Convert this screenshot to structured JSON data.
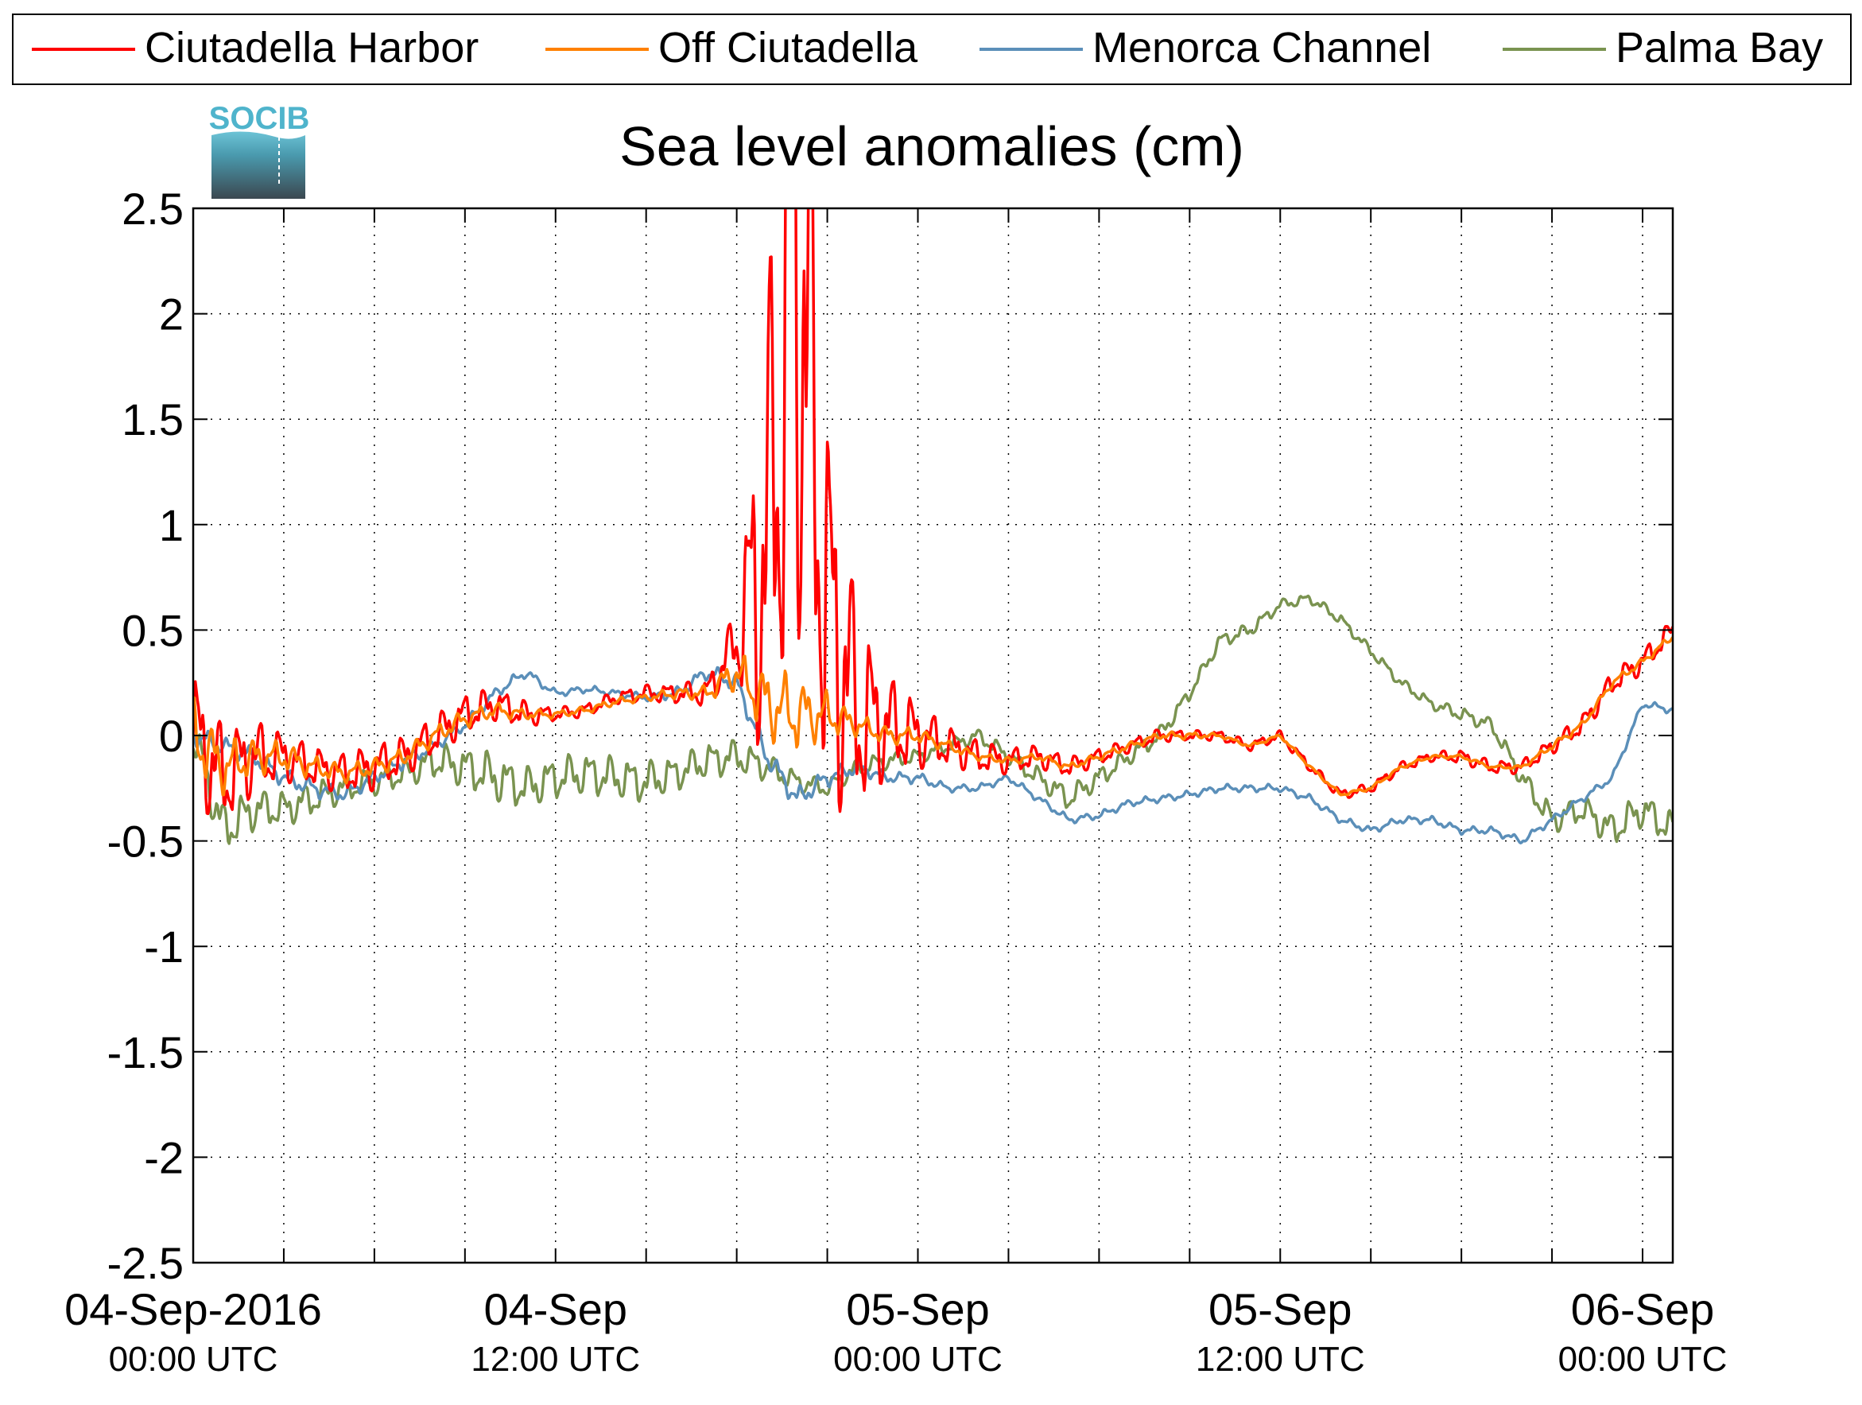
{
  "chart_data": {
    "type": "line",
    "title": "Sea level anomalies (cm)",
    "logo_text": "SOCIB",
    "ylim": [
      -2.5,
      2.5
    ],
    "yticks": [
      -2.5,
      -2,
      -1.5,
      -1,
      -0.5,
      0,
      0.5,
      1,
      1.5,
      2,
      2.5
    ],
    "ytick_labels": [
      "-2.5",
      "-2",
      "-1.5",
      "-1",
      "-0.5",
      "0",
      "0.5",
      "1",
      "1.5",
      "2",
      "2.5"
    ],
    "xlim": [
      "2016-09-04T00:00Z",
      "2016-09-06T01:00Z"
    ],
    "xticks": [
      {
        "time": "2016-09-04T00:00Z",
        "label1": "04-Sep-2016",
        "label2": "00:00 UTC"
      },
      {
        "time": "2016-09-04T12:00Z",
        "label1": "04-Sep",
        "label2": "12:00 UTC"
      },
      {
        "time": "2016-09-05T00:00Z",
        "label1": "05-Sep",
        "label2": "00:00 UTC"
      },
      {
        "time": "2016-09-05T12:00Z",
        "label1": "05-Sep",
        "label2": "12:00 UTC"
      },
      {
        "time": "2016-09-06T00:00Z",
        "label1": "06-Sep",
        "label2": "00:00 UTC"
      }
    ],
    "grid": true,
    "legend_position": "top",
    "series": [
      {
        "name": "Ciutadella Harbor",
        "color": "#ff0000",
        "x": [
          "2016-09-04T00:00Z",
          "2016-09-04T01:00Z",
          "2016-09-04T02:00Z",
          "2016-09-04T03:00Z",
          "2016-09-04T04:00Z",
          "2016-09-04T05:00Z",
          "2016-09-04T06:00Z",
          "2016-09-04T07:00Z",
          "2016-09-04T08:00Z",
          "2016-09-04T09:00Z",
          "2016-09-04T10:00Z",
          "2016-09-04T11:00Z",
          "2016-09-04T12:00Z",
          "2016-09-04T13:00Z",
          "2016-09-04T14:00Z",
          "2016-09-04T15:00Z",
          "2016-09-04T16:00Z",
          "2016-09-04T17:00Z",
          "2016-09-04T18:00Z",
          "2016-09-04T19:00Z",
          "2016-09-04T20:00Z",
          "2016-09-04T21:00Z",
          "2016-09-04T22:00Z",
          "2016-09-04T23:00Z",
          "2016-09-05T00:00Z",
          "2016-09-05T01:00Z",
          "2016-09-05T02:00Z",
          "2016-09-05T03:00Z",
          "2016-09-05T04:00Z",
          "2016-09-05T05:00Z",
          "2016-09-05T06:00Z",
          "2016-09-05T07:00Z",
          "2016-09-05T08:00Z",
          "2016-09-05T09:00Z",
          "2016-09-05T10:00Z",
          "2016-09-05T11:00Z",
          "2016-09-05T12:00Z",
          "2016-09-05T13:00Z",
          "2016-09-05T14:00Z",
          "2016-09-05T15:00Z",
          "2016-09-05T16:00Z",
          "2016-09-05T17:00Z",
          "2016-09-05T18:00Z",
          "2016-09-05T19:00Z",
          "2016-09-05T20:00Z",
          "2016-09-05T21:00Z",
          "2016-09-05T22:00Z",
          "2016-09-05T23:00Z",
          "2016-09-06T00:00Z",
          "2016-09-06T01:00Z"
        ],
        "values": [
          0.0,
          -0.2,
          -0.1,
          -0.1,
          -0.15,
          -0.18,
          -0.15,
          -0.1,
          0.0,
          0.1,
          0.15,
          0.1,
          0.1,
          0.12,
          0.18,
          0.2,
          0.2,
          0.2,
          0.45,
          0.9,
          2.4,
          0.6,
          0.1,
          0.05,
          0.0,
          -0.05,
          -0.1,
          -0.12,
          -0.1,
          -0.15,
          -0.1,
          -0.05,
          0.0,
          0.0,
          0.0,
          -0.05,
          0.0,
          -0.15,
          -0.28,
          -0.25,
          -0.15,
          -0.1,
          -0.1,
          -0.15,
          -0.15,
          -0.05,
          0.05,
          0.25,
          0.35,
          0.5
        ],
        "amplitude": [
          0.4,
          0.3,
          0.22,
          0.15,
          0.12,
          0.12,
          0.14,
          0.12,
          0.12,
          0.12,
          0.1,
          0.08,
          0.04,
          0.04,
          0.04,
          0.05,
          0.06,
          0.08,
          0.2,
          1.4,
          2.4,
          1.2,
          0.6,
          0.3,
          0.2,
          0.12,
          0.1,
          0.08,
          0.07,
          0.06,
          0.05,
          0.04,
          0.04,
          0.03,
          0.03,
          0.03,
          0.03,
          0.03,
          0.03,
          0.03,
          0.03,
          0.03,
          0.04,
          0.04,
          0.04,
          0.05,
          0.06,
          0.07,
          0.07,
          0.07
        ]
      },
      {
        "name": "Off Ciutadella",
        "color": "#ff8000",
        "x": [
          "2016-09-04T00:00Z",
          "2016-09-04T01:00Z",
          "2016-09-04T02:00Z",
          "2016-09-04T03:00Z",
          "2016-09-04T04:00Z",
          "2016-09-04T05:00Z",
          "2016-09-04T06:00Z",
          "2016-09-04T07:00Z",
          "2016-09-04T08:00Z",
          "2016-09-04T09:00Z",
          "2016-09-04T10:00Z",
          "2016-09-04T11:00Z",
          "2016-09-04T12:00Z",
          "2016-09-04T13:00Z",
          "2016-09-04T14:00Z",
          "2016-09-04T15:00Z",
          "2016-09-04T16:00Z",
          "2016-09-04T17:00Z",
          "2016-09-04T18:00Z",
          "2016-09-04T19:00Z",
          "2016-09-04T20:00Z",
          "2016-09-04T21:00Z",
          "2016-09-04T22:00Z",
          "2016-09-04T23:00Z",
          "2016-09-05T00:00Z",
          "2016-09-05T01:00Z",
          "2016-09-05T02:00Z",
          "2016-09-05T03:00Z",
          "2016-09-05T04:00Z",
          "2016-09-05T05:00Z",
          "2016-09-05T06:00Z",
          "2016-09-05T07:00Z",
          "2016-09-05T08:00Z",
          "2016-09-05T09:00Z",
          "2016-09-05T10:00Z",
          "2016-09-05T11:00Z",
          "2016-09-05T12:00Z",
          "2016-09-05T13:00Z",
          "2016-09-05T14:00Z",
          "2016-09-05T15:00Z",
          "2016-09-05T16:00Z",
          "2016-09-05T17:00Z",
          "2016-09-05T18:00Z",
          "2016-09-05T19:00Z",
          "2016-09-05T20:00Z",
          "2016-09-05T21:00Z",
          "2016-09-05T22:00Z",
          "2016-09-05T23:00Z",
          "2016-09-06T00:00Z",
          "2016-09-06T01:00Z"
        ],
        "values": [
          0.0,
          -0.15,
          -0.1,
          -0.1,
          -0.15,
          -0.18,
          -0.15,
          -0.1,
          0.0,
          0.08,
          0.12,
          0.1,
          0.1,
          0.12,
          0.16,
          0.18,
          0.2,
          0.2,
          0.3,
          0.15,
          0.1,
          0.1,
          0.05,
          0.0,
          0.0,
          -0.05,
          -0.1,
          -0.12,
          -0.1,
          -0.15,
          -0.1,
          -0.05,
          0.0,
          0.0,
          0.0,
          -0.05,
          0.0,
          -0.15,
          -0.28,
          -0.25,
          -0.15,
          -0.1,
          -0.1,
          -0.15,
          -0.15,
          -0.05,
          0.05,
          0.25,
          0.35,
          0.47
        ],
        "amplitude": [
          0.2,
          0.15,
          0.1,
          0.08,
          0.06,
          0.05,
          0.05,
          0.05,
          0.05,
          0.05,
          0.04,
          0.03,
          0.02,
          0.02,
          0.02,
          0.02,
          0.03,
          0.04,
          0.1,
          0.2,
          0.2,
          0.12,
          0.06,
          0.05,
          0.04,
          0.03,
          0.02,
          0.02,
          0.02,
          0.02,
          0.02,
          0.02,
          0.02,
          0.02,
          0.01,
          0.01,
          0.01,
          0.01,
          0.01,
          0.01,
          0.01,
          0.01,
          0.01,
          0.01,
          0.01,
          0.02,
          0.02,
          0.02,
          0.02,
          0.02
        ]
      },
      {
        "name": "Menorca Channel",
        "color": "#5b8fb9",
        "x": [
          "2016-09-04T00:00Z",
          "2016-09-04T01:00Z",
          "2016-09-04T02:00Z",
          "2016-09-04T03:00Z",
          "2016-09-04T04:00Z",
          "2016-09-04T05:00Z",
          "2016-09-04T06:00Z",
          "2016-09-04T07:00Z",
          "2016-09-04T08:00Z",
          "2016-09-04T09:00Z",
          "2016-09-04T10:00Z",
          "2016-09-04T11:00Z",
          "2016-09-04T12:00Z",
          "2016-09-04T13:00Z",
          "2016-09-04T14:00Z",
          "2016-09-04T15:00Z",
          "2016-09-04T16:00Z",
          "2016-09-04T17:00Z",
          "2016-09-04T18:00Z",
          "2016-09-04T19:00Z",
          "2016-09-04T20:00Z",
          "2016-09-04T21:00Z",
          "2016-09-04T22:00Z",
          "2016-09-04T23:00Z",
          "2016-09-05T00:00Z",
          "2016-09-05T01:00Z",
          "2016-09-05T02:00Z",
          "2016-09-05T03:00Z",
          "2016-09-05T04:00Z",
          "2016-09-05T05:00Z",
          "2016-09-05T06:00Z",
          "2016-09-05T07:00Z",
          "2016-09-05T08:00Z",
          "2016-09-05T09:00Z",
          "2016-09-05T10:00Z",
          "2016-09-05T11:00Z",
          "2016-09-05T12:00Z",
          "2016-09-05T13:00Z",
          "2016-09-05T14:00Z",
          "2016-09-05T15:00Z",
          "2016-09-05T16:00Z",
          "2016-09-05T17:00Z",
          "2016-09-05T18:00Z",
          "2016-09-05T19:00Z",
          "2016-09-05T20:00Z",
          "2016-09-05T21:00Z",
          "2016-09-05T22:00Z",
          "2016-09-05T23:00Z",
          "2016-09-06T00:00Z",
          "2016-09-06T01:00Z"
        ],
        "values": [
          0.0,
          -0.05,
          -0.1,
          -0.2,
          -0.25,
          -0.28,
          -0.2,
          -0.12,
          -0.05,
          0.05,
          0.2,
          0.3,
          0.2,
          0.22,
          0.2,
          0.18,
          0.2,
          0.3,
          0.25,
          -0.1,
          -0.3,
          -0.2,
          -0.15,
          -0.2,
          -0.2,
          -0.25,
          -0.25,
          -0.2,
          -0.3,
          -0.4,
          -0.38,
          -0.32,
          -0.3,
          -0.28,
          -0.25,
          -0.25,
          -0.25,
          -0.3,
          -0.4,
          -0.45,
          -0.4,
          -0.4,
          -0.45,
          -0.45,
          -0.5,
          -0.4,
          -0.3,
          -0.2,
          0.15,
          0.12
        ],
        "amplitude": [
          0.05,
          0.05,
          0.05,
          0.05,
          0.05,
          0.04,
          0.04,
          0.04,
          0.03,
          0.03,
          0.03,
          0.03,
          0.02,
          0.02,
          0.02,
          0.02,
          0.03,
          0.04,
          0.05,
          0.06,
          0.06,
          0.05,
          0.04,
          0.03,
          0.03,
          0.02,
          0.02,
          0.02,
          0.02,
          0.02,
          0.02,
          0.02,
          0.02,
          0.02,
          0.02,
          0.02,
          0.02,
          0.02,
          0.02,
          0.02,
          0.02,
          0.02,
          0.02,
          0.02,
          0.02,
          0.02,
          0.02,
          0.02,
          0.02,
          0.02
        ]
      },
      {
        "name": "Palma Bay",
        "color": "#7a9350",
        "x": [
          "2016-09-04T00:00Z",
          "2016-09-04T01:00Z",
          "2016-09-04T02:00Z",
          "2016-09-04T03:00Z",
          "2016-09-04T04:00Z",
          "2016-09-04T05:00Z",
          "2016-09-04T06:00Z",
          "2016-09-04T07:00Z",
          "2016-09-04T08:00Z",
          "2016-09-04T09:00Z",
          "2016-09-04T10:00Z",
          "2016-09-04T11:00Z",
          "2016-09-04T12:00Z",
          "2016-09-04T13:00Z",
          "2016-09-04T14:00Z",
          "2016-09-04T15:00Z",
          "2016-09-04T16:00Z",
          "2016-09-04T17:00Z",
          "2016-09-04T18:00Z",
          "2016-09-04T19:00Z",
          "2016-09-04T20:00Z",
          "2016-09-04T21:00Z",
          "2016-09-04T22:00Z",
          "2016-09-04T23:00Z",
          "2016-09-05T00:00Z",
          "2016-09-05T01:00Z",
          "2016-09-05T02:00Z",
          "2016-09-05T03:00Z",
          "2016-09-05T04:00Z",
          "2016-09-05T05:00Z",
          "2016-09-05T06:00Z",
          "2016-09-05T07:00Z",
          "2016-09-05T08:00Z",
          "2016-09-05T09:00Z",
          "2016-09-05T10:00Z",
          "2016-09-05T11:00Z",
          "2016-09-05T12:00Z",
          "2016-09-05T13:00Z",
          "2016-09-05T14:00Z",
          "2016-09-05T15:00Z",
          "2016-09-05T16:00Z",
          "2016-09-05T17:00Z",
          "2016-09-05T18:00Z",
          "2016-09-05T19:00Z",
          "2016-09-05T20:00Z",
          "2016-09-05T21:00Z",
          "2016-09-05T22:00Z",
          "2016-09-05T23:00Z",
          "2016-09-06T00:00Z",
          "2016-09-06T01:00Z"
        ],
        "values": [
          0.0,
          -0.45,
          -0.35,
          -0.35,
          -0.3,
          -0.25,
          -0.22,
          -0.18,
          -0.12,
          -0.15,
          -0.2,
          -0.25,
          -0.2,
          -0.18,
          -0.2,
          -0.22,
          -0.18,
          -0.12,
          -0.1,
          -0.15,
          -0.22,
          -0.25,
          -0.15,
          -0.12,
          -0.1,
          -0.05,
          0.0,
          -0.1,
          -0.2,
          -0.3,
          -0.2,
          -0.1,
          0.0,
          0.2,
          0.45,
          0.5,
          0.62,
          0.65,
          0.55,
          0.4,
          0.25,
          0.15,
          0.1,
          0.05,
          -0.2,
          -0.4,
          -0.35,
          -0.45,
          -0.35,
          -0.45
        ],
        "amplitude": [
          0.12,
          0.15,
          0.12,
          0.1,
          0.1,
          0.08,
          0.08,
          0.08,
          0.1,
          0.12,
          0.14,
          0.12,
          0.12,
          0.12,
          0.12,
          0.12,
          0.1,
          0.1,
          0.1,
          0.08,
          0.06,
          0.05,
          0.05,
          0.05,
          0.04,
          0.04,
          0.04,
          0.05,
          0.06,
          0.07,
          0.06,
          0.05,
          0.05,
          0.04,
          0.04,
          0.04,
          0.03,
          0.03,
          0.03,
          0.03,
          0.03,
          0.03,
          0.04,
          0.04,
          0.06,
          0.08,
          0.08,
          0.1,
          0.1,
          0.1
        ]
      }
    ]
  }
}
